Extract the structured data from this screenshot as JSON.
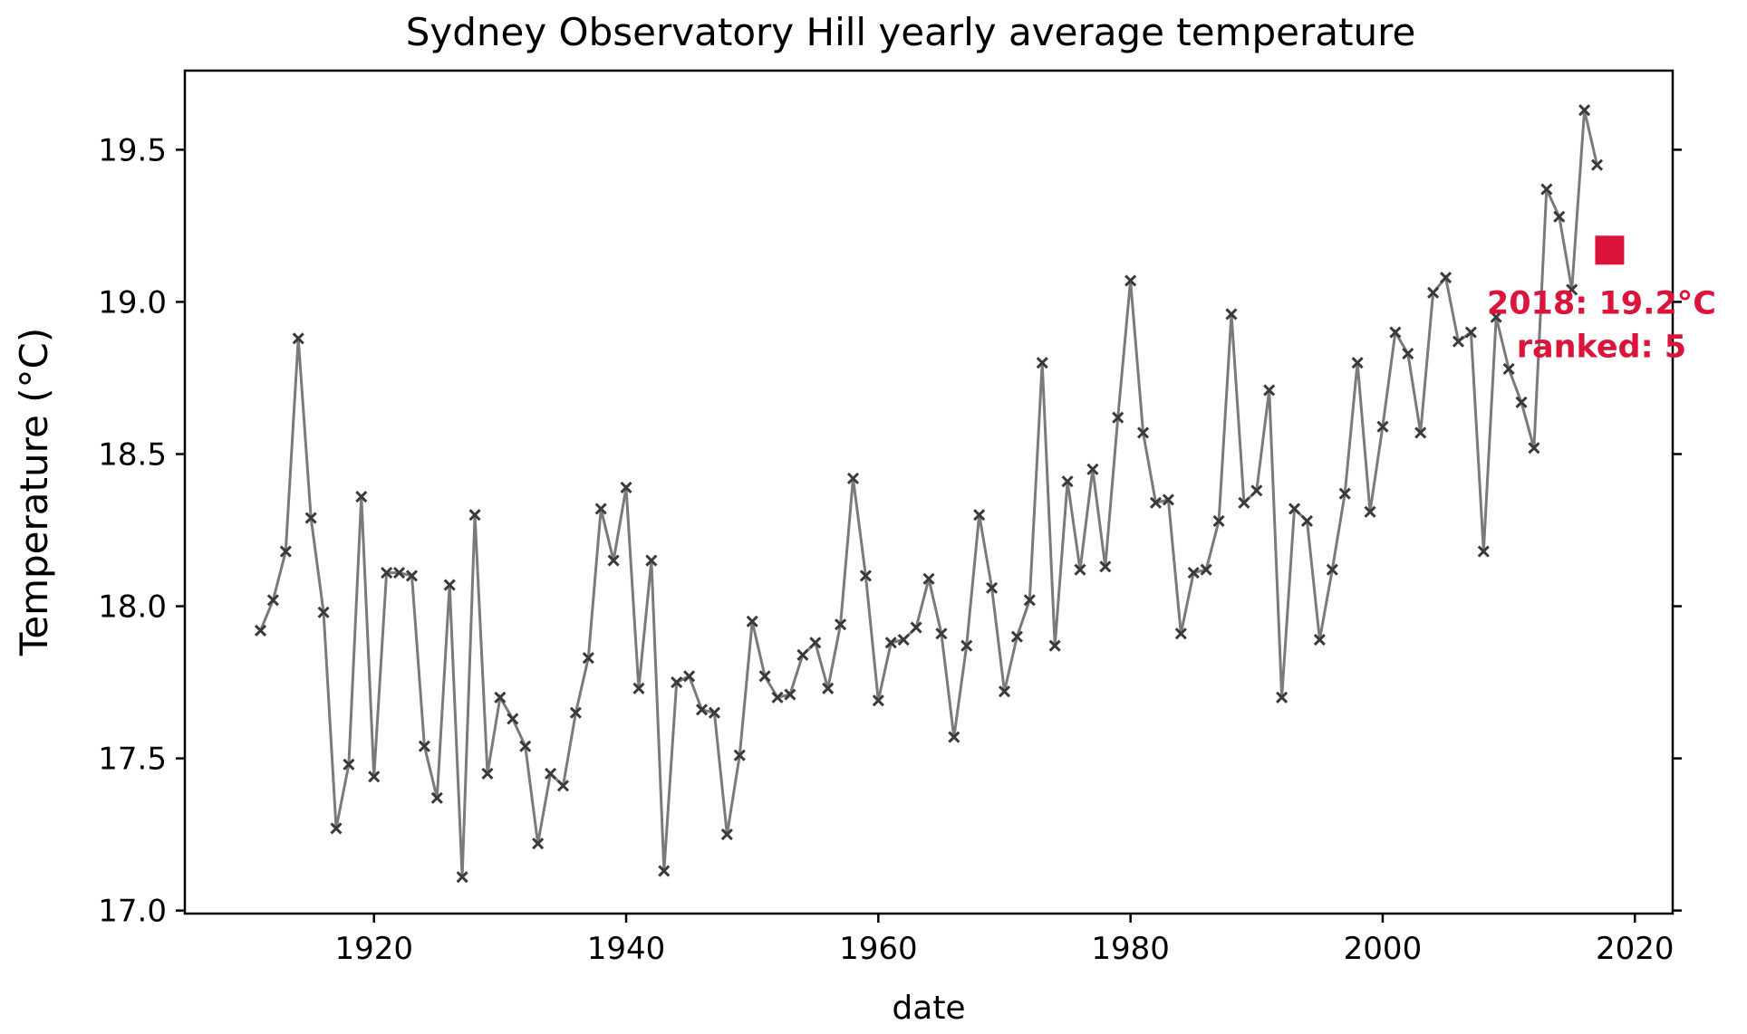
{
  "chart_data": {
    "type": "line",
    "title": "Sydney Observatory Hill yearly average temperature",
    "xlabel": "date",
    "ylabel": "Temperature (°C)",
    "xlim": [
      1905,
      2023
    ],
    "ylim": [
      16.99,
      19.76
    ],
    "xticks": [
      1920,
      1940,
      1960,
      1980,
      2000,
      2020
    ],
    "yticks": [
      17.0,
      17.5,
      18.0,
      18.5,
      19.0,
      19.5
    ],
    "grid": false,
    "series": [
      {
        "marker": "x",
        "color": "#555555",
        "x": [
          1911,
          1912,
          1913,
          1914,
          1915,
          1916,
          1917,
          1918,
          1919,
          1920,
          1921,
          1922,
          1923,
          1924,
          1925,
          1926,
          1927,
          1928,
          1929,
          1930,
          1931,
          1932,
          1933,
          1934,
          1935,
          1936,
          1937,
          1938,
          1939,
          1940,
          1941,
          1942,
          1943,
          1944,
          1945,
          1946,
          1947,
          1948,
          1949,
          1950,
          1951,
          1952,
          1953,
          1954,
          1955,
          1956,
          1957,
          1958,
          1959,
          1960,
          1961,
          1962,
          1963,
          1964,
          1965,
          1966,
          1967,
          1968,
          1969,
          1970,
          1971,
          1972,
          1973,
          1974,
          1975,
          1976,
          1977,
          1978,
          1979,
          1980,
          1981,
          1982,
          1983,
          1984,
          1985,
          1986,
          1987,
          1988,
          1989,
          1990,
          1991,
          1992,
          1993,
          1994,
          1995,
          1996,
          1997,
          1998,
          1999,
          2000,
          2001,
          2002,
          2003,
          2004,
          2005,
          2006,
          2007,
          2008,
          2009,
          2010,
          2011,
          2012,
          2013,
          2014,
          2015,
          2016,
          2017
        ],
        "y": [
          17.92,
          18.02,
          18.18,
          18.88,
          18.29,
          17.98,
          17.27,
          17.48,
          18.36,
          17.44,
          18.11,
          18.11,
          18.1,
          17.54,
          17.37,
          18.07,
          17.11,
          18.3,
          17.45,
          17.7,
          17.63,
          17.54,
          17.22,
          17.45,
          17.41,
          17.65,
          17.83,
          18.32,
          18.15,
          18.39,
          17.73,
          18.15,
          17.13,
          17.75,
          17.77,
          17.66,
          17.65,
          17.25,
          17.51,
          17.95,
          17.77,
          17.7,
          17.71,
          17.84,
          17.88,
          17.73,
          17.94,
          18.42,
          18.1,
          17.69,
          17.88,
          17.89,
          17.93,
          18.09,
          17.91,
          17.57,
          17.87,
          18.3,
          18.06,
          17.72,
          17.9,
          18.02,
          18.8,
          17.87,
          18.41,
          18.12,
          18.45,
          18.13,
          18.62,
          19.07,
          18.57,
          18.34,
          18.35,
          17.91,
          18.11,
          18.12,
          18.28,
          18.96,
          18.34,
          18.38,
          18.71,
          17.7,
          18.32,
          18.28,
          17.89,
          18.12,
          18.37,
          18.8,
          18.31,
          18.59,
          18.9,
          18.83,
          18.57,
          19.03,
          19.08,
          18.87,
          18.9,
          18.18,
          18.95,
          18.78,
          18.67,
          18.52,
          19.37,
          19.28,
          19.04,
          19.63,
          19.45
        ]
      }
    ],
    "highlight": {
      "x": 2018,
      "y": 19.17,
      "color": "#dc143c",
      "marker": "square",
      "label_line1": "2018: 19.2°C",
      "label_line2": "ranked: 5"
    }
  }
}
